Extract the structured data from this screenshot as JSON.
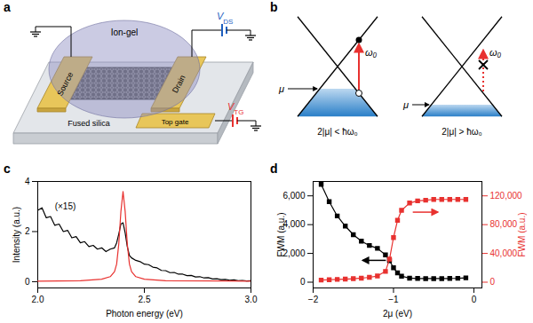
{
  "diagrams": [
    {
      "panel": "a",
      "labels": {
        "gel": "Ion-gel",
        "source": "Source",
        "drain": "Drain",
        "gate": "Top gate",
        "substrate": "Fused silica"
      },
      "sources": [
        {
          "symbol": "V",
          "subscript": "DS",
          "color": "#1f5fbf"
        },
        {
          "symbol": "V",
          "subscript": "TG",
          "color": "#e8312f"
        }
      ]
    },
    {
      "panel": "b",
      "chemical_potential": "μ",
      "photon": "ω₀",
      "cases": [
        {
          "caption": "2|μ| < ħω₀",
          "allowed": true
        },
        {
          "caption": "2|μ| > ħω₀",
          "allowed": false
        }
      ]
    }
  ],
  "chart_data": [
    {
      "panel": "c",
      "type": "line",
      "x_label": "Photon energy (eV)",
      "y_label": "Intensity (a.u.)",
      "xlim": [
        2,
        3
      ],
      "xticks": [
        {
          "value": 2,
          "label": "2.0"
        },
        {
          "value": 2.5,
          "label": "2.5"
        },
        {
          "value": 3,
          "label": "3.0"
        }
      ],
      "ylim": [
        -0.25,
        4
      ],
      "yticks": [
        0,
        2,
        4
      ],
      "annotations": [
        {
          "text": "(×15)",
          "x": 2.08,
          "y": 3.0
        }
      ],
      "series": [
        {
          "color": "#000000",
          "x": [
            2.0,
            2.02,
            2.04,
            2.06,
            2.08,
            2.1,
            2.12,
            2.14,
            2.16,
            2.18,
            2.2,
            2.22,
            2.24,
            2.26,
            2.28,
            2.3,
            2.32,
            2.34,
            2.36,
            2.37,
            2.38,
            2.39,
            2.4,
            2.41,
            2.42,
            2.43,
            2.44,
            2.46,
            2.48,
            2.5,
            2.52,
            2.54,
            2.56,
            2.58,
            2.6,
            2.62,
            2.64,
            2.66,
            2.68,
            2.7,
            2.72,
            2.74,
            2.76,
            2.78,
            2.8,
            2.82,
            2.84,
            2.86,
            2.88,
            2.9,
            2.92,
            2.94,
            2.96,
            2.98,
            3.0
          ],
          "values": [
            2.85,
            2.95,
            2.55,
            2.6,
            2.25,
            2.3,
            2.0,
            2.05,
            1.75,
            1.8,
            1.55,
            1.6,
            1.4,
            1.45,
            1.3,
            1.35,
            1.2,
            1.3,
            1.35,
            1.55,
            1.9,
            2.3,
            2.35,
            1.95,
            1.4,
            1.05,
            0.95,
            0.85,
            0.8,
            0.7,
            0.68,
            0.58,
            0.55,
            0.45,
            0.44,
            0.36,
            0.37,
            0.3,
            0.3,
            0.24,
            0.25,
            0.19,
            0.2,
            0.15,
            0.16,
            0.11,
            0.12,
            0.08,
            0.09,
            0.06,
            0.07,
            0.04,
            0.05,
            0.03,
            0.04
          ]
        },
        {
          "color": "#e8312f",
          "x": [
            2.0,
            2.2,
            2.3,
            2.34,
            2.36,
            2.37,
            2.38,
            2.39,
            2.4,
            2.41,
            2.42,
            2.43,
            2.44,
            2.46,
            2.5,
            2.6,
            3.0
          ],
          "values": [
            0.02,
            0.04,
            0.1,
            0.2,
            0.4,
            0.7,
            1.5,
            2.8,
            3.6,
            2.8,
            1.5,
            0.7,
            0.4,
            0.2,
            0.1,
            0.04,
            0.02
          ]
        }
      ]
    },
    {
      "panel": "d",
      "type": "line",
      "marker": "square",
      "x_label": "2μ (eV)",
      "y_label": "FWM (a.u.)",
      "y2_label": "FWM (a.u.)",
      "xlim": [
        -2,
        0.1
      ],
      "xticks": [
        -2,
        -1,
        0
      ],
      "ylim": [
        -400,
        7000
      ],
      "yticks": [
        0,
        {
          "value": 2000,
          "label": "2,000"
        },
        {
          "value": 4000,
          "label": "4,000"
        },
        {
          "value": 6000,
          "label": "6,000"
        }
      ],
      "y2lim": [
        -8000,
        140000
      ],
      "y2ticks": [
        0,
        {
          "value": 40000,
          "label": "40,000"
        },
        {
          "value": 80000,
          "label": "80,000"
        },
        {
          "value": 120000,
          "label": "120,000"
        }
      ],
      "x": [
        -1.9,
        -1.8,
        -1.7,
        -1.6,
        -1.5,
        -1.4,
        -1.3,
        -1.2,
        -1.1,
        -1.05,
        -1.0,
        -0.95,
        -0.9,
        -0.8,
        -0.7,
        -0.6,
        -0.5,
        -0.4,
        -0.3,
        -0.2,
        -0.1
      ],
      "series": [
        {
          "color": "#000000",
          "values": [
            6800,
            5600,
            4600,
            3900,
            3300,
            2850,
            2550,
            2350,
            1900,
            1500,
            1000,
            650,
            420,
            280,
            260,
            250,
            250,
            250,
            260,
            270,
            300
          ]
        },
        {
          "color": "#e8312f",
          "axis": "y2",
          "values": [
            3000,
            3400,
            3900,
            4300,
            4900,
            5600,
            6800,
            8600,
            15000,
            32000,
            62000,
            86000,
            100000,
            110000,
            113000,
            114000,
            115000,
            115000,
            115000,
            115000,
            115000
          ]
        }
      ]
    }
  ]
}
